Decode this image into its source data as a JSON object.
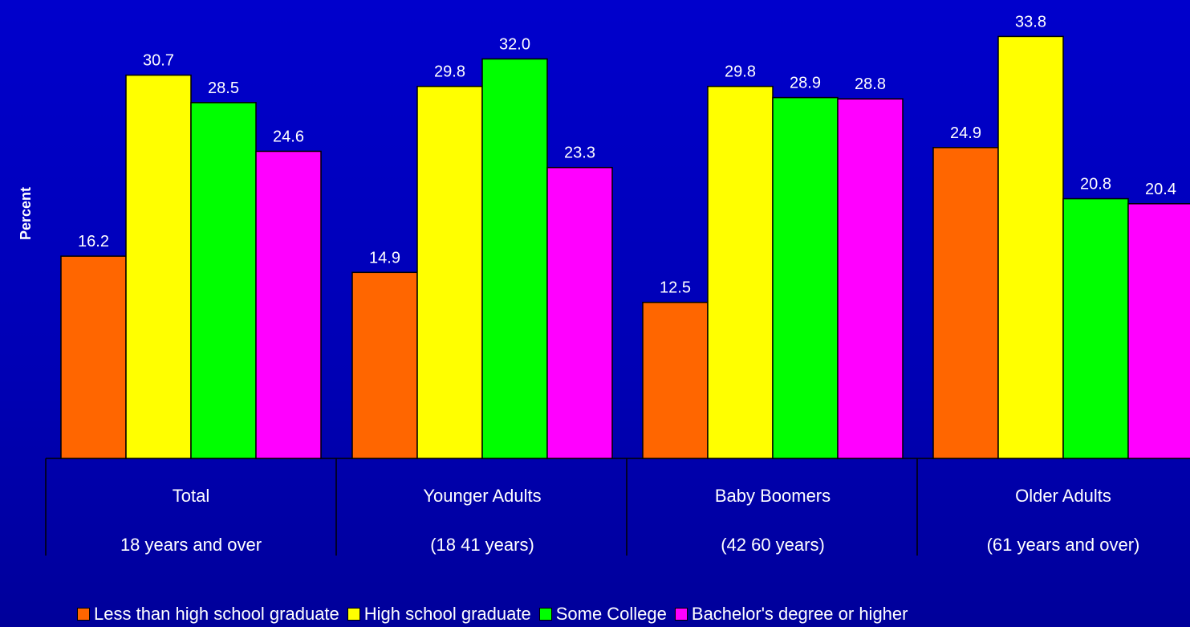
{
  "chart_data": {
    "type": "bar",
    "ylabel": "Percent",
    "categories": [
      {
        "line1": "Total",
        "line2": "18 years and over"
      },
      {
        "line1": "Younger Adults",
        "line2": "(18 41 years)"
      },
      {
        "line1": "Baby Boomers",
        "line2": "(42 60 years)"
      },
      {
        "line1": "Older Adults",
        "line2": "(61 years and over)"
      }
    ],
    "series": [
      {
        "name": "Less than high school graduate",
        "color": "#ff6600",
        "values": [
          16.2,
          14.9,
          12.5,
          24.9
        ],
        "labels": [
          "16.2",
          "14.9",
          "12.5",
          "24.9"
        ]
      },
      {
        "name": "High school graduate",
        "color": "#ffff00",
        "values": [
          30.7,
          29.8,
          29.8,
          33.8
        ],
        "labels": [
          "30.7",
          "29.8",
          "29.8",
          "33.8"
        ]
      },
      {
        "name": "Some College",
        "color": "#00ff00",
        "values": [
          28.5,
          32.0,
          28.9,
          20.8
        ],
        "labels": [
          "28.5",
          "32.0",
          "28.9",
          "20.8"
        ]
      },
      {
        "name": "Bachelor's degree or higher",
        "color": "#ff00ff",
        "values": [
          24.6,
          23.3,
          28.8,
          20.4
        ],
        "labels": [
          "24.6",
          "23.3",
          "28.8",
          "20.4"
        ]
      }
    ],
    "ylim": [
      0,
      35
    ],
    "grid": false,
    "legend_position": "bottom"
  }
}
